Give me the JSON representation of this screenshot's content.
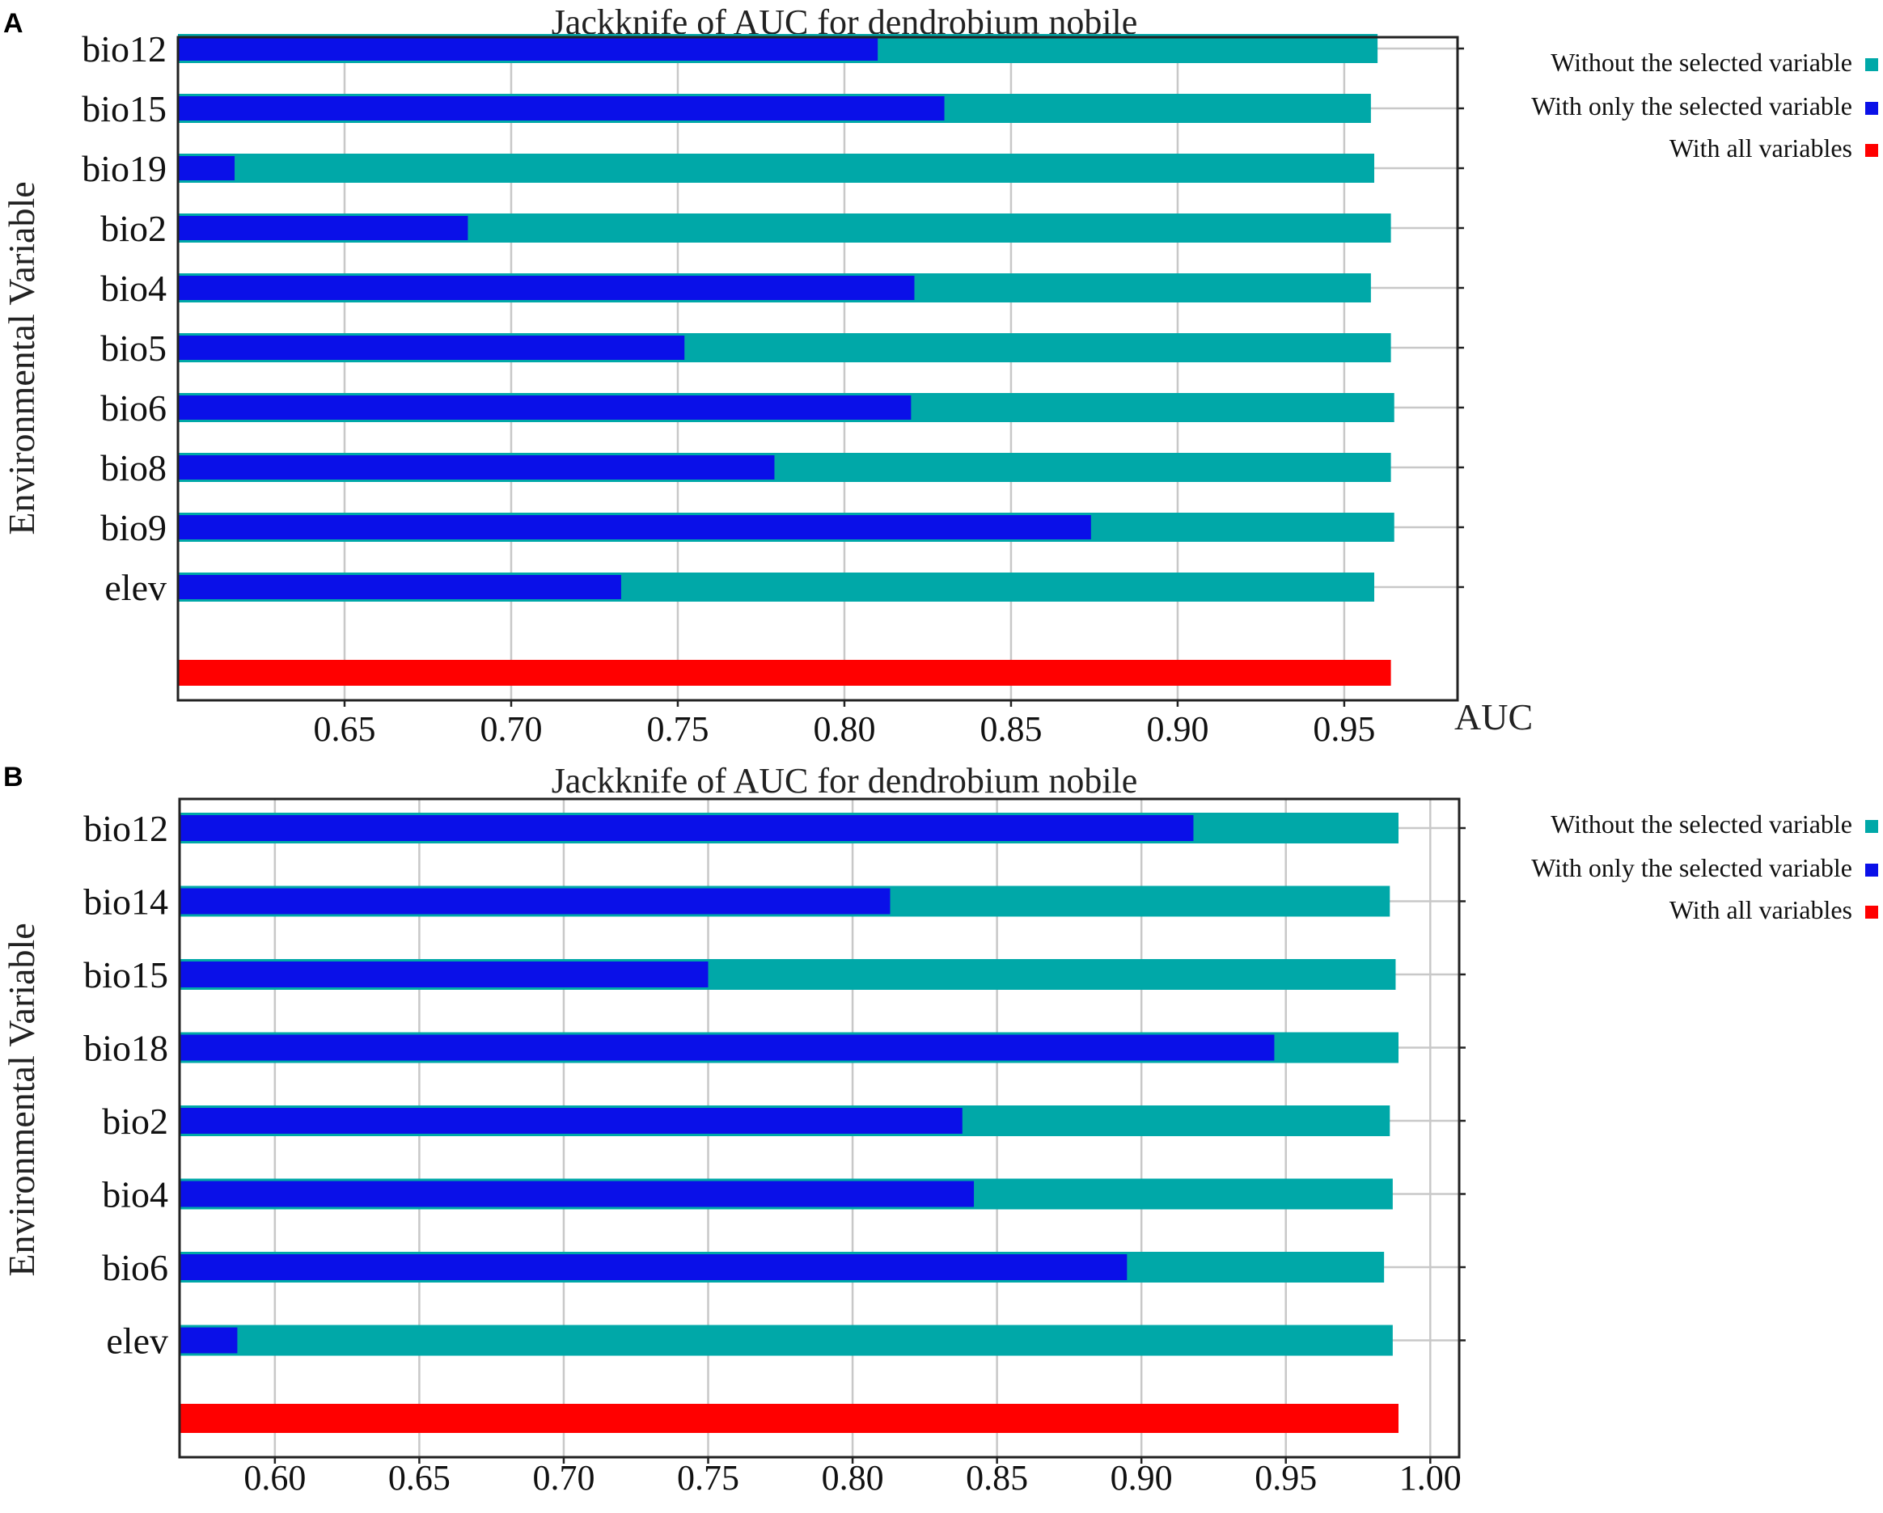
{
  "colors": {
    "without": "#00a8a8",
    "with_only": "#0a10e8",
    "all": "#ff0000"
  },
  "legend": {
    "without": "Without the selected variable",
    "with_only": "With only the selected variable",
    "all": "With all variables"
  },
  "chart_data": [
    {
      "panel": "A",
      "type": "bar",
      "orientation": "horizontal",
      "title": "Jackknife of AUC for dendrobium nobile",
      "xlabel": "AUC",
      "ylabel": "Environmental Variable",
      "xlim": [
        0.6,
        0.984
      ],
      "xticks": [
        "0.65",
        "0.70",
        "0.75",
        "0.80",
        "0.85",
        "0.90",
        "0.95"
      ],
      "categories": [
        "bio12",
        "bio15",
        "bio19",
        "bio2",
        "bio4",
        "bio5",
        "bio6",
        "bio8",
        "bio9",
        "elev"
      ],
      "series": [
        {
          "name": "Without the selected variable",
          "values": [
            0.96,
            0.958,
            0.959,
            0.964,
            0.958,
            0.964,
            0.965,
            0.964,
            0.965,
            0.959
          ]
        },
        {
          "name": "With only the selected variable",
          "values": [
            0.81,
            0.83,
            0.617,
            0.687,
            0.821,
            0.752,
            0.82,
            0.779,
            0.874,
            0.733
          ]
        }
      ],
      "all_variables": 0.964,
      "grid": true,
      "legend_position": "right"
    },
    {
      "panel": "B",
      "type": "bar",
      "orientation": "horizontal",
      "title": "Jackknife of AUC for dendrobium nobile",
      "xlabel": "",
      "ylabel": "Environmental Variable",
      "xlim": [
        0.567,
        1.01
      ],
      "xticks": [
        "0.60",
        "0.65",
        "0.70",
        "0.75",
        "0.80",
        "0.85",
        "0.90",
        "0.95",
        "1.00"
      ],
      "categories": [
        "bio12",
        "bio14",
        "bio15",
        "bio18",
        "bio2",
        "bio4",
        "bio6",
        "elev"
      ],
      "series": [
        {
          "name": "Without the selected variable",
          "values": [
            0.989,
            0.986,
            0.988,
            0.989,
            0.986,
            0.987,
            0.984,
            0.987
          ]
        },
        {
          "name": "With only the selected variable",
          "values": [
            0.918,
            0.813,
            0.75,
            0.946,
            0.838,
            0.842,
            0.895,
            0.587
          ]
        }
      ],
      "all_variables": 0.989,
      "grid": true,
      "legend_position": "right"
    }
  ]
}
